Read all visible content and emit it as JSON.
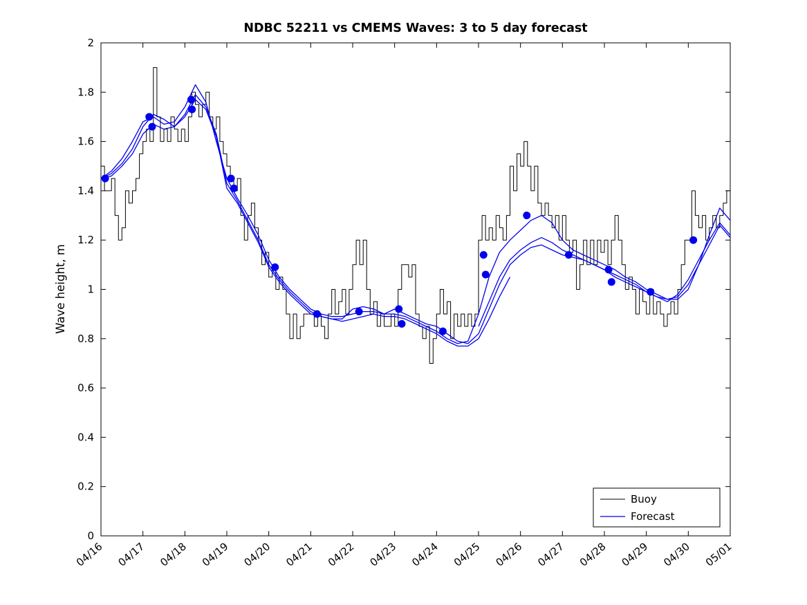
{
  "chart_data": {
    "type": "line",
    "title": "NDBC 52211 vs CMEMS Waves: 3 to 5 day forecast",
    "xlabel": "",
    "ylabel": "Wave height, m",
    "ylim": [
      0,
      2
    ],
    "x_range_days": [
      0,
      15
    ],
    "grid": false,
    "x_tick_labels": [
      "04/16",
      "04/17",
      "04/18",
      "04/19",
      "04/20",
      "04/21",
      "04/22",
      "04/23",
      "04/24",
      "04/25",
      "04/26",
      "04/27",
      "04/28",
      "04/29",
      "04/30",
      "05/01"
    ],
    "y_ticks": {
      "values": [
        0,
        0.2,
        0.4,
        0.6,
        0.8,
        1,
        1.2,
        1.4,
        1.6,
        1.8,
        2
      ],
      "labels": [
        "0",
        "0.2",
        "0.4",
        "0.6",
        "0.8",
        "1",
        "1.2",
        "1.4",
        "1.6",
        "1.8",
        "2"
      ]
    },
    "colors": {
      "buoy": "#000000",
      "forecast": "#0000ee"
    },
    "legend": {
      "position": "bottom-right",
      "entries": [
        {
          "label": "Buoy",
          "color": "#000000",
          "width": 1
        },
        {
          "label": "Forecast",
          "color": "#0000ee",
          "width": 1.3
        }
      ]
    },
    "series": [
      {
        "name": "Buoy",
        "color": "#000000",
        "style": "step",
        "width": 1,
        "start_day": 0,
        "samples_per_day": 12,
        "values": [
          1.5,
          1.4,
          1.4,
          1.45,
          1.3,
          1.2,
          1.25,
          1.4,
          1.35,
          1.4,
          1.45,
          1.55,
          1.6,
          1.65,
          1.6,
          1.9,
          1.7,
          1.6,
          1.65,
          1.6,
          1.7,
          1.65,
          1.6,
          1.65,
          1.6,
          1.7,
          1.8,
          1.75,
          1.7,
          1.75,
          1.8,
          1.7,
          1.65,
          1.7,
          1.6,
          1.55,
          1.5,
          1.45,
          1.4,
          1.45,
          1.3,
          1.2,
          1.3,
          1.35,
          1.25,
          1.2,
          1.1,
          1.15,
          1.05,
          1.1,
          1.0,
          1.05,
          1.0,
          0.9,
          0.8,
          0.9,
          0.8,
          0.85,
          0.9,
          0.9,
          0.9,
          0.85,
          0.9,
          0.85,
          0.8,
          0.9,
          1.0,
          0.9,
          0.95,
          1.0,
          0.9,
          1.0,
          1.1,
          1.2,
          1.1,
          1.2,
          1.0,
          0.9,
          0.95,
          0.85,
          0.9,
          0.85,
          0.85,
          0.9,
          0.85,
          1.0,
          1.1,
          1.1,
          1.05,
          1.1,
          0.9,
          0.85,
          0.8,
          0.85,
          0.7,
          0.8,
          0.9,
          1.0,
          0.9,
          0.95,
          0.8,
          0.9,
          0.85,
          0.9,
          0.85,
          0.9,
          0.85,
          0.9,
          1.2,
          1.3,
          1.2,
          1.25,
          1.2,
          1.3,
          1.25,
          1.2,
          1.3,
          1.5,
          1.4,
          1.55,
          1.5,
          1.6,
          1.5,
          1.4,
          1.5,
          1.35,
          1.3,
          1.35,
          1.3,
          1.25,
          1.3,
          1.2,
          1.3,
          1.2,
          1.15,
          1.2,
          1.0,
          1.1,
          1.2,
          1.1,
          1.2,
          1.1,
          1.2,
          1.15,
          1.2,
          1.1,
          1.2,
          1.3,
          1.2,
          1.1,
          1.0,
          1.05,
          1.0,
          0.9,
          1.0,
          0.95,
          0.9,
          1.0,
          0.9,
          0.95,
          0.9,
          0.85,
          0.9,
          0.95,
          0.9,
          1.0,
          1.1,
          1.2,
          1.2,
          1.4,
          1.3,
          1.25,
          1.3,
          1.2,
          1.25,
          1.3,
          1.25,
          1.3,
          1.35,
          1.4,
          1.45
        ]
      },
      {
        "name": "Forecast run 1",
        "color": "#0000ee",
        "style": "line",
        "width": 1.3,
        "start_day": 0,
        "samples_per_day": 4,
        "values": [
          1.45,
          1.48,
          1.53,
          1.6,
          1.68,
          1.7,
          1.67,
          1.68,
          1.74,
          1.83,
          1.76,
          1.6,
          1.45,
          1.37,
          1.3,
          1.22,
          1.12,
          1.05,
          1.0,
          0.96,
          0.92,
          0.9,
          0.89,
          0.89,
          0.9,
          0.91,
          0.91,
          0.9,
          0.9,
          0.89,
          0.87,
          0.85,
          0.83,
          0.8,
          0.78,
          0.79,
          0.9,
          1.05,
          1.15,
          1.2,
          1.24,
          1.28,
          1.3,
          1.27,
          1.2,
          1.16,
          1.14,
          1.12,
          1.1,
          1.08,
          1.05,
          1.03,
          1.0,
          0.98,
          0.96,
          0.96,
          1.0,
          1.1,
          1.22,
          1.33,
          1.28
        ]
      },
      {
        "name": "Forecast run 2",
        "color": "#0000ee",
        "style": "line",
        "width": 1.3,
        "start_day": 0,
        "samples_per_day": 4,
        "values": [
          1.45,
          1.47,
          1.51,
          1.57,
          1.66,
          1.71,
          1.69,
          1.66,
          1.7,
          1.77,
          1.73,
          1.62,
          1.41,
          1.35,
          1.27,
          1.19,
          1.09,
          1.03,
          0.98,
          0.94,
          0.9,
          0.89,
          0.88,
          0.88,
          0.92,
          0.93,
          0.92,
          0.9,
          0.92,
          0.9,
          0.88,
          0.86,
          0.85,
          0.82,
          0.79,
          0.78,
          0.82,
          0.92,
          1.02,
          1.1,
          1.14,
          1.17,
          1.18,
          1.16,
          1.14,
          1.13,
          1.12,
          1.1,
          1.08,
          1.05,
          1.03,
          1.01,
          0.99,
          0.97,
          0.96,
          0.97,
          1.02,
          1.1,
          1.18,
          1.26,
          1.21
        ]
      },
      {
        "name": "Forecast run 3",
        "color": "#0000ee",
        "style": "line",
        "width": 1.3,
        "start_day": 0,
        "samples_per_day": 4,
        "values": [
          1.45,
          1.46,
          1.5,
          1.55,
          1.63,
          1.67,
          1.65,
          1.66,
          1.71,
          1.79,
          1.74,
          1.63,
          1.43,
          1.36,
          1.28,
          1.2,
          1.1,
          1.04,
          0.99,
          0.95,
          0.91,
          0.89,
          0.88,
          0.87,
          0.88,
          0.89,
          0.9,
          0.89,
          0.89,
          0.88,
          0.86,
          0.84,
          0.82,
          0.79,
          0.77,
          0.77,
          0.8,
          0.88,
          0.97,
          1.05
        ]
      },
      {
        "name": "Forecast run 4",
        "color": "#0000ee",
        "style": "line",
        "width": 1.3,
        "start_day": 9,
        "samples_per_day": 4,
        "values": [
          0.85,
          0.95,
          1.05,
          1.12,
          1.16,
          1.19,
          1.21,
          1.19,
          1.16,
          1.14,
          1.12,
          1.1,
          1.08,
          1.06,
          1.04,
          1.02,
          0.99,
          0.97,
          0.95,
          0.98,
          1.04,
          1.12,
          1.2,
          1.27,
          1.22
        ]
      }
    ],
    "markers": {
      "name": "Forecast verification markers",
      "color": "#0000ee",
      "radius": 5.5,
      "points": [
        [
          0.1,
          1.45
        ],
        [
          1.15,
          1.7
        ],
        [
          1.22,
          1.66
        ],
        [
          2.15,
          1.77
        ],
        [
          2.17,
          1.73
        ],
        [
          3.1,
          1.45
        ],
        [
          3.17,
          1.41
        ],
        [
          4.15,
          1.09
        ],
        [
          5.15,
          0.9
        ],
        [
          6.15,
          0.91
        ],
        [
          7.1,
          0.92
        ],
        [
          7.17,
          0.86
        ],
        [
          8.15,
          0.83
        ],
        [
          9.12,
          1.14
        ],
        [
          9.17,
          1.06
        ],
        [
          10.15,
          1.3
        ],
        [
          11.15,
          1.14
        ],
        [
          12.1,
          1.08
        ],
        [
          12.17,
          1.03
        ],
        [
          13.1,
          0.99
        ],
        [
          14.12,
          1.2
        ]
      ]
    }
  }
}
